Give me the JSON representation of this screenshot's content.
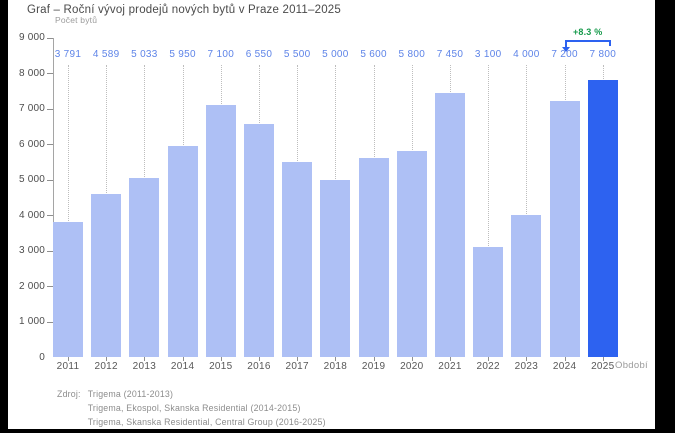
{
  "frame": {
    "background": "#000000",
    "panel_background": "#ffffff"
  },
  "chart_data": {
    "type": "bar",
    "title": "Graf – Roční vývoj prodejů nových bytů v Praze 2011–2025",
    "ylabel": "Počet bytů",
    "xlabel": "Období",
    "categories": [
      "2011",
      "2012",
      "2013",
      "2014",
      "2015",
      "2016",
      "2017",
      "2018",
      "2019",
      "2020",
      "2021",
      "2022",
      "2023",
      "2024",
      "2025"
    ],
    "values": [
      3791,
      4589,
      5033,
      5950,
      7100,
      6550,
      5500,
      5000,
      5600,
      5800,
      7450,
      3100,
      4000,
      7200,
      7800
    ],
    "value_labels": [
      "3 791",
      "4 589",
      "5 033",
      "5 950",
      "7 100",
      "6 550",
      "5 500",
      "5 000",
      "5 600",
      "5 800",
      "7 450",
      "3 100",
      "4 000",
      "7 200",
      "7 800"
    ],
    "ylim": [
      0,
      9000
    ],
    "ytick_step": 1000,
    "ytick_labels": [
      "0",
      "1 000",
      "2 000",
      "3 000",
      "4 000",
      "5 000",
      "6 000",
      "7 000",
      "8 000",
      "9 000"
    ],
    "grid": "off",
    "legend": "none",
    "highlight_category": "2025",
    "annotation": {
      "label": "+8.3 %",
      "from_category": "2024",
      "to_category": "2025"
    },
    "colors": {
      "bar": "#aec0f5",
      "bar_highlight": "#2d62f0",
      "value_label": "#5e84e8",
      "annotation_text": "#169a4b",
      "annotation_arrow": "#2d62f0"
    }
  },
  "source": {
    "label": "Zdroj:",
    "lines": [
      "Trigema (2011-2013)",
      "Trigema, Ekospol, Skanska Residential (2014-2015)",
      "Trigema, Skanska Residential, Central Group (2016-2025)"
    ]
  }
}
